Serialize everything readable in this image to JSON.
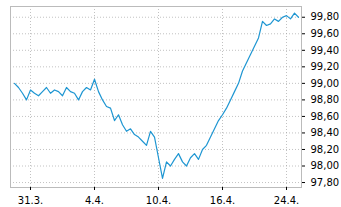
{
  "chart_data": {
    "type": "line",
    "categories": [
      null,
      null,
      null,
      null,
      "31.3.",
      null,
      null,
      null,
      null,
      null,
      null,
      null,
      null,
      null,
      null,
      null,
      null,
      null,
      null,
      null,
      "4.4.",
      null,
      null,
      null,
      null,
      null,
      null,
      null,
      null,
      null,
      null,
      null,
      null,
      null,
      null,
      null,
      "10.4.",
      null,
      null,
      null,
      null,
      null,
      null,
      null,
      null,
      null,
      null,
      null,
      null,
      null,
      null,
      null,
      "16.4.",
      null,
      null,
      null,
      null,
      null,
      null,
      null,
      null,
      null,
      null,
      null,
      null,
      null,
      null,
      null,
      "24.4.",
      null,
      null,
      null
    ],
    "values": [
      99.0,
      98.95,
      98.88,
      98.8,
      98.92,
      98.88,
      98.85,
      98.9,
      98.95,
      98.88,
      98.92,
      98.9,
      98.85,
      98.95,
      98.9,
      98.88,
      98.8,
      98.9,
      98.95,
      98.92,
      99.05,
      98.9,
      98.8,
      98.72,
      98.7,
      98.55,
      98.62,
      98.5,
      98.42,
      98.45,
      98.38,
      98.35,
      98.3,
      98.25,
      98.42,
      98.35,
      98.1,
      97.85,
      98.05,
      98.0,
      98.08,
      98.15,
      98.05,
      98.0,
      98.1,
      98.15,
      98.08,
      98.2,
      98.25,
      98.35,
      98.45,
      98.55,
      98.62,
      98.7,
      98.8,
      98.9,
      99.0,
      99.15,
      99.25,
      99.35,
      99.45,
      99.55,
      99.75,
      99.7,
      99.72,
      99.78,
      99.75,
      99.8,
      99.82,
      99.78,
      99.85,
      99.8
    ],
    "color": "#1e96d2",
    "ylim": [
      97.74,
      99.93
    ],
    "yticks": [
      {
        "value": 97.8,
        "label": "97,80"
      },
      {
        "value": 98.0,
        "label": "98,00"
      },
      {
        "value": 98.2,
        "label": "98,20"
      },
      {
        "value": 98.4,
        "label": "98,40"
      },
      {
        "value": 98.6,
        "label": "98,60"
      },
      {
        "value": 98.8,
        "label": "98,80"
      },
      {
        "value": 99.0,
        "label": "99,00"
      },
      {
        "value": 99.2,
        "label": "99,20"
      },
      {
        "value": 99.4,
        "label": "99,40"
      },
      {
        "value": 99.6,
        "label": "99,60"
      },
      {
        "value": 99.8,
        "label": "99,80"
      }
    ],
    "grid": true
  }
}
